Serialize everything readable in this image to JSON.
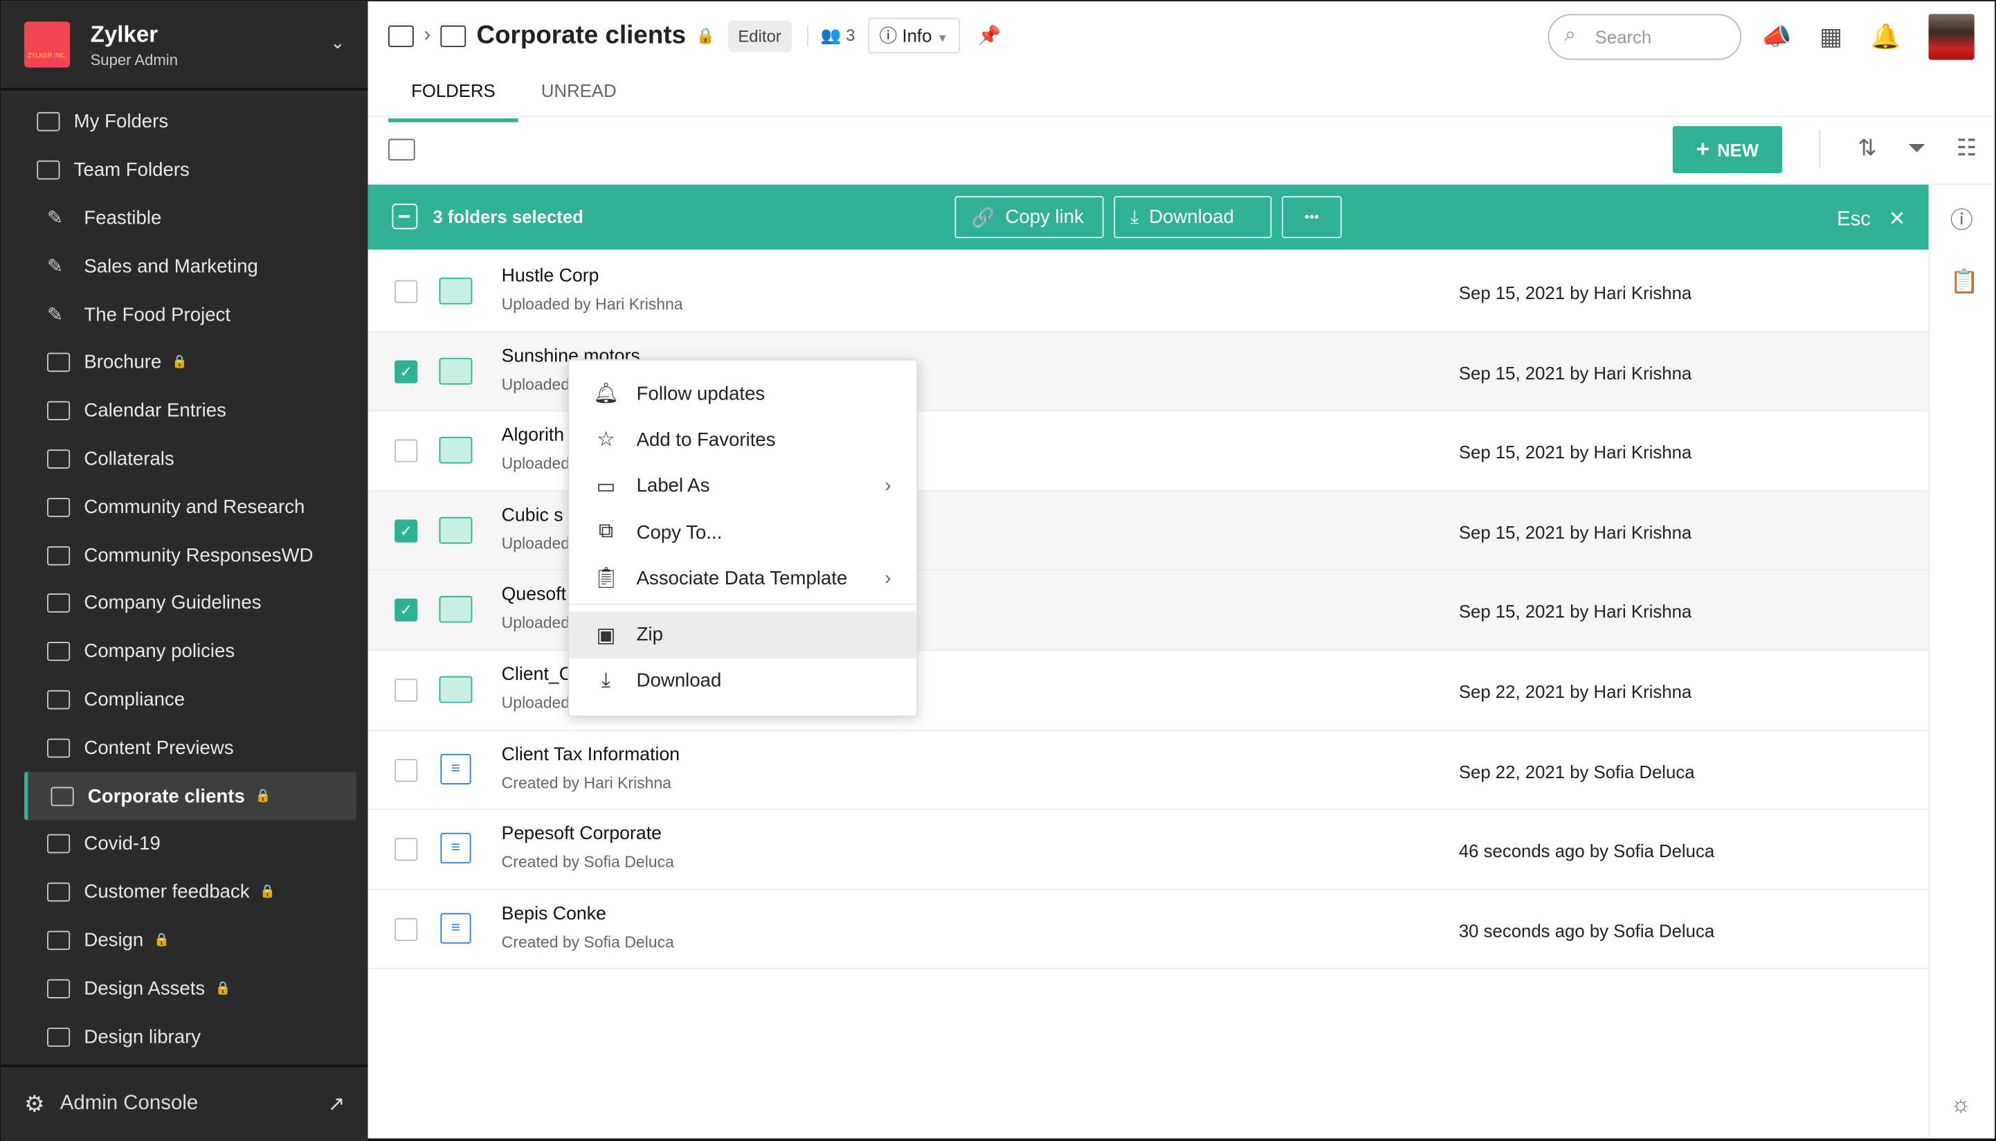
{
  "org": {
    "name": "Zylker",
    "role": "Super Admin",
    "logo_text": "ZYLKER INC."
  },
  "sidebar": {
    "top": [
      {
        "label": "My Folders"
      },
      {
        "label": "Team Folders"
      }
    ],
    "items": [
      {
        "label": "Feastible",
        "icon": "pin",
        "lock": false
      },
      {
        "label": "Sales and Marketing",
        "icon": "pin",
        "lock": false
      },
      {
        "label": "The Food Project",
        "icon": "pin",
        "lock": false
      },
      {
        "label": "Brochure",
        "icon": "folder",
        "lock": true
      },
      {
        "label": "Calendar Entries",
        "icon": "folder",
        "lock": false
      },
      {
        "label": "Collaterals",
        "icon": "folder",
        "lock": false
      },
      {
        "label": "Community and Research",
        "icon": "folder",
        "lock": false
      },
      {
        "label": "Community ResponsesWD",
        "icon": "folder",
        "lock": false
      },
      {
        "label": "Company Guidelines",
        "icon": "folder",
        "lock": false
      },
      {
        "label": "Company policies",
        "icon": "folder",
        "lock": false
      },
      {
        "label": "Compliance",
        "icon": "folder",
        "lock": false
      },
      {
        "label": "Content Previews",
        "icon": "folder",
        "lock": false
      },
      {
        "label": "Corporate clients",
        "icon": "folder",
        "lock": true,
        "active": true
      },
      {
        "label": "Covid-19",
        "icon": "folder",
        "lock": false
      },
      {
        "label": "Customer feedback",
        "icon": "folder",
        "lock": true
      },
      {
        "label": "Design",
        "icon": "folder",
        "lock": true
      },
      {
        "label": "Design Assets",
        "icon": "folder",
        "lock": true
      },
      {
        "label": "Design library",
        "icon": "folder",
        "lock": false
      }
    ],
    "admin_label": "Admin Console"
  },
  "header": {
    "title": "Corporate clients",
    "role_badge": "Editor",
    "members": "3",
    "info_label": "Info",
    "search_placeholder": "Search",
    "tabs": [
      {
        "label": "FOLDERS",
        "active": true
      },
      {
        "label": "UNREAD"
      }
    ]
  },
  "toolbar": {
    "new_label": "NEW"
  },
  "selection": {
    "count_label": "3 folders selected",
    "copy_link": "Copy link",
    "download": "Download",
    "more": "•••",
    "esc": "Esc"
  },
  "rows": [
    {
      "name": "Hustle Corp",
      "sub": "Uploaded by Hari Krishna",
      "date": "Sep 15, 2021 by Hari Krishna",
      "type": "folder",
      "selected": false
    },
    {
      "name": "Sunshine motors",
      "sub": "Uploaded",
      "date": "Sep 15, 2021 by Hari Krishna",
      "type": "folder",
      "selected": true
    },
    {
      "name": "Algorith",
      "sub": "Uploaded",
      "date": "Sep 15, 2021 by Hari Krishna",
      "type": "folder",
      "selected": false
    },
    {
      "name": "Cubic s",
      "sub": "Uploaded",
      "date": "Sep 15, 2021 by Hari Krishna",
      "type": "folder",
      "selected": true
    },
    {
      "name": "Quesoft",
      "sub": "Uploaded",
      "date": "Sep 15, 2021 by Hari Krishna",
      "type": "folder",
      "selected": true
    },
    {
      "name": "Client_C",
      "sub": "Uploaded",
      "date": "Sep 22, 2021 by Hari Krishna",
      "type": "folder",
      "selected": false
    },
    {
      "name": "Client Tax Information",
      "sub": "Created by Hari Krishna",
      "date": "Sep 22, 2021 by Sofia Deluca",
      "type": "form",
      "selected": false
    },
    {
      "name": "Pepesoft Corporate",
      "sub": "Created by Sofia Deluca",
      "date": "46 seconds ago by Sofia Deluca",
      "type": "form",
      "selected": false
    },
    {
      "name": "Bepis Conke",
      "sub": "Created by Sofia Deluca",
      "date": "30 seconds ago by Sofia Deluca",
      "type": "form",
      "selected": false
    }
  ],
  "context_menu": [
    {
      "label": "Follow updates",
      "icon": "bell-icon"
    },
    {
      "label": "Add to Favorites",
      "icon": "star-icon"
    },
    {
      "label": "Label As",
      "icon": "label-icon",
      "submenu": true
    },
    {
      "label": "Copy To...",
      "icon": "copy-icon"
    },
    {
      "label": "Associate Data Template",
      "icon": "template-icon",
      "submenu": true
    },
    {
      "label": "Zip",
      "icon": "zip-icon",
      "highlighted": true
    },
    {
      "label": "Download",
      "icon": "download-icon"
    }
  ],
  "colors": {
    "accent": "#2eb293",
    "sidebar": "#2a2a2a",
    "logo": "#f24451"
  }
}
